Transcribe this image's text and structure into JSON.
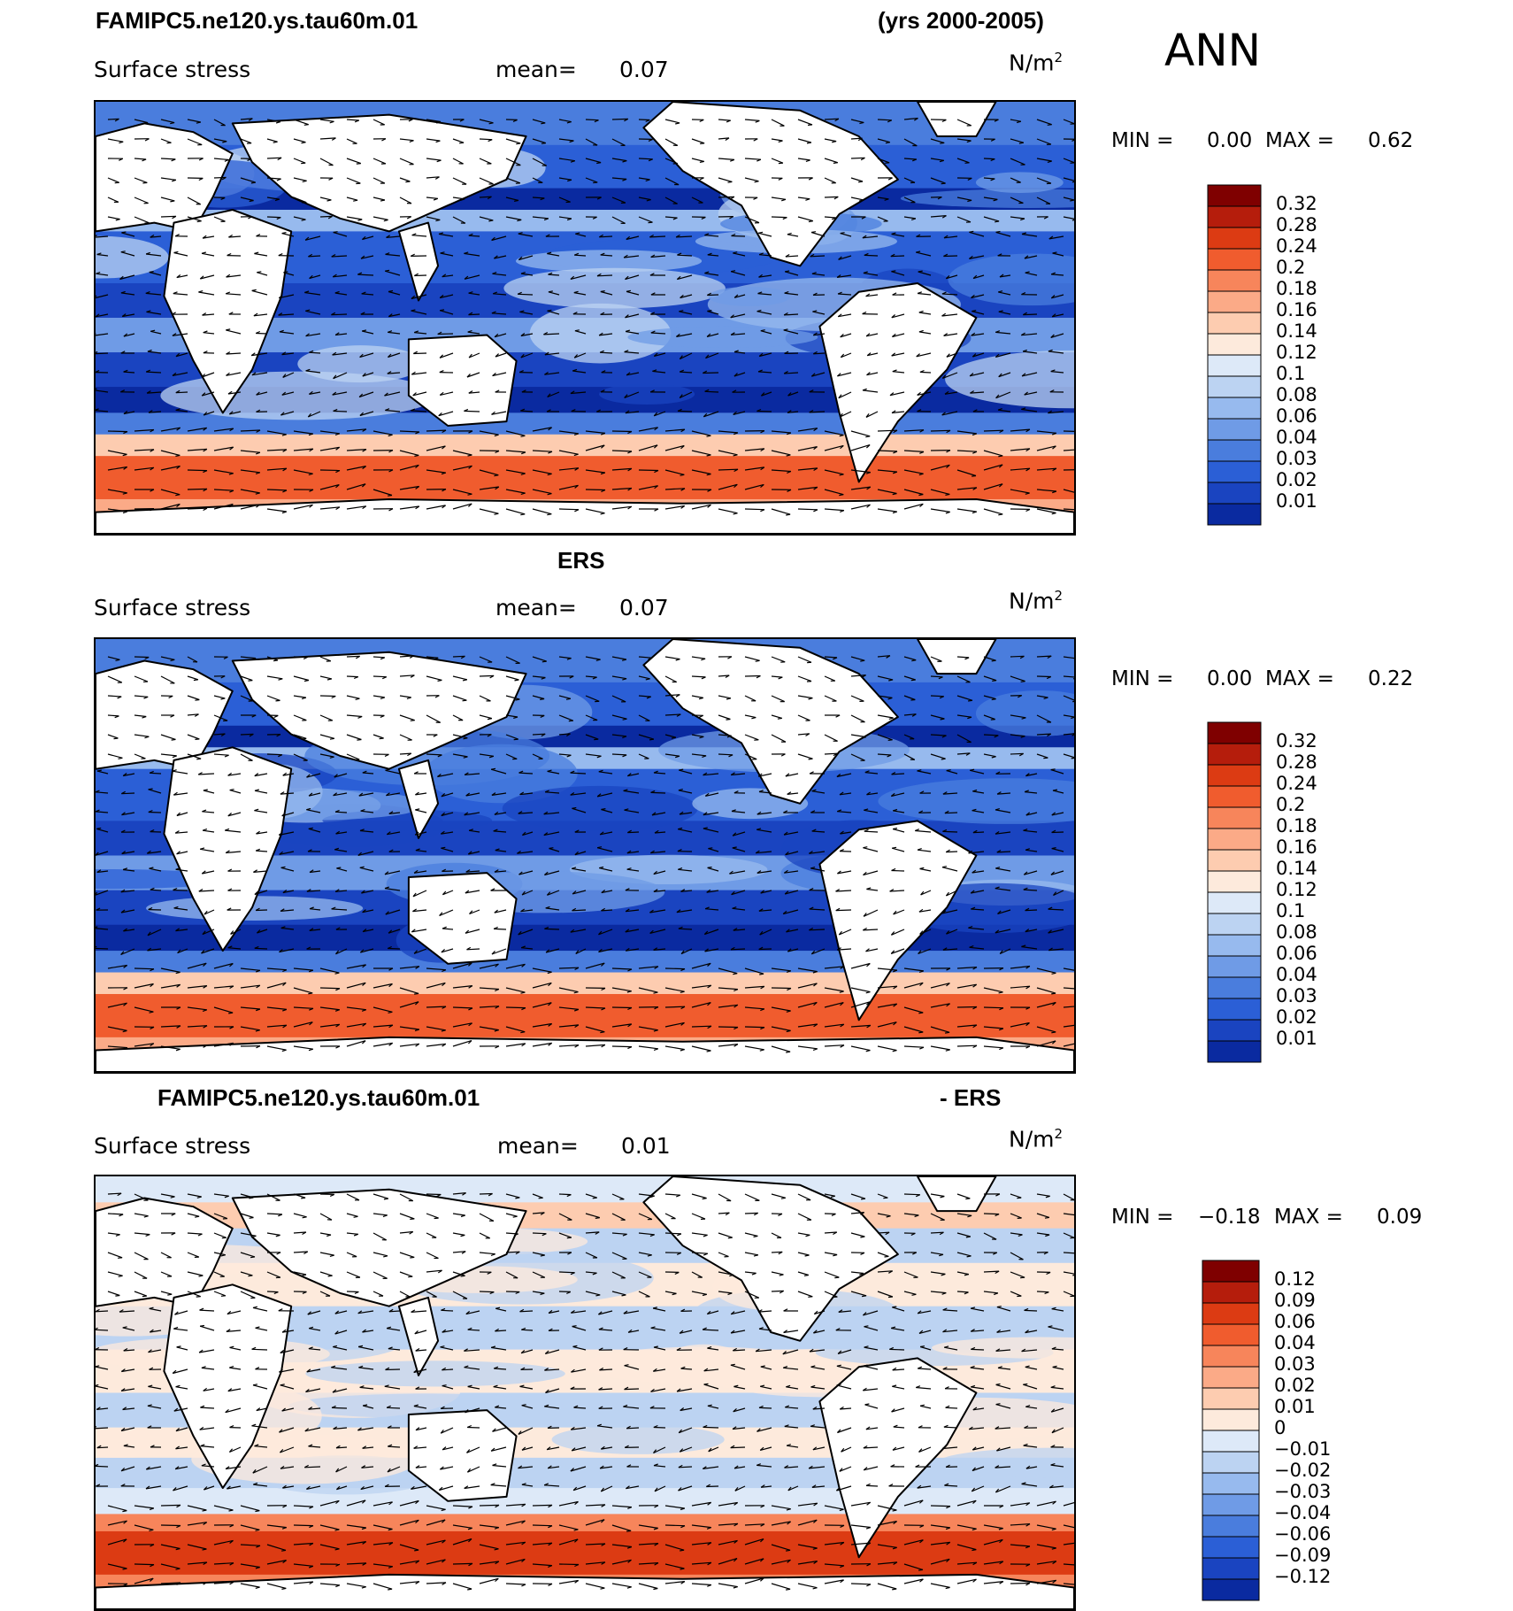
{
  "header": {
    "season": "ANN",
    "run_name": "FAMIPC5.ne120.ys.tau60m.01",
    "years": "(yrs 2000-2005)"
  },
  "chart_data": [
    {
      "type": "heatmap",
      "id": "model",
      "title": "",
      "variable": "Surface stress",
      "mean_label": "mean=",
      "mean_value": "0.07",
      "units_base": "N/m",
      "units_exp": "2",
      "min_label": "MIN =",
      "min_value": "0.00",
      "max_label": "MAX =",
      "max_value": "0.62",
      "colorbar": {
        "labels": [
          "0.32",
          "0.28",
          "0.24",
          "0.2",
          "0.18",
          "0.16",
          "0.14",
          "0.12",
          "0.1",
          "0.08",
          "0.06",
          "0.04",
          "0.03",
          "0.02",
          "0.01"
        ],
        "colors": [
          "#7f0000",
          "#b51d0c",
          "#dc3b13",
          "#f05c2e",
          "#f7855b",
          "#fbaa87",
          "#fdccb0",
          "#fdeadc",
          "#dde9f8",
          "#bcd3f2",
          "#97baee",
          "#6f9be6",
          "#4a7ddd",
          "#2b5fd6",
          "#1a44c0",
          "#0a2aa0"
        ]
      }
    },
    {
      "type": "heatmap",
      "id": "obs",
      "title": "ERS",
      "variable": "Surface stress",
      "mean_label": "mean=",
      "mean_value": "0.07",
      "units_base": "N/m",
      "units_exp": "2",
      "min_label": "MIN =",
      "min_value": "0.00",
      "max_label": "MAX =",
      "max_value": "0.22",
      "colorbar": {
        "labels": [
          "0.32",
          "0.28",
          "0.24",
          "0.2",
          "0.18",
          "0.16",
          "0.14",
          "0.12",
          "0.1",
          "0.08",
          "0.06",
          "0.04",
          "0.03",
          "0.02",
          "0.01"
        ],
        "colors": [
          "#7f0000",
          "#b51d0c",
          "#dc3b13",
          "#f05c2e",
          "#f7855b",
          "#fbaa87",
          "#fdccb0",
          "#fdeadc",
          "#dde9f8",
          "#bcd3f2",
          "#97baee",
          "#6f9be6",
          "#4a7ddd",
          "#2b5fd6",
          "#1a44c0",
          "#0a2aa0"
        ]
      }
    },
    {
      "type": "heatmap",
      "id": "diff",
      "title_left": "FAMIPC5.ne120.ys.tau60m.01",
      "title_right": "- ERS",
      "variable": "Surface stress",
      "mean_label": "mean=",
      "mean_value": "0.01",
      "units_base": "N/m",
      "units_exp": "2",
      "min_label": "MIN =",
      "min_value": "−0.18",
      "max_label": "MAX =",
      "max_value": "0.09",
      "colorbar": {
        "labels": [
          "0.12",
          "0.09",
          "0.06",
          "0.04",
          "0.03",
          "0.02",
          "0.01",
          "0",
          "−0.01",
          "−0.02",
          "−0.03",
          "−0.04",
          "−0.06",
          "−0.09",
          "−0.12"
        ],
        "colors": [
          "#7f0000",
          "#b51d0c",
          "#dc3b13",
          "#f05c2e",
          "#f7855b",
          "#fbaa87",
          "#fdccb0",
          "#fdeadc",
          "#dde9f8",
          "#bcd3f2",
          "#97baee",
          "#6f9be6",
          "#4a7ddd",
          "#2b5fd6",
          "#1a44c0",
          "#0a2aa0"
        ]
      }
    }
  ]
}
